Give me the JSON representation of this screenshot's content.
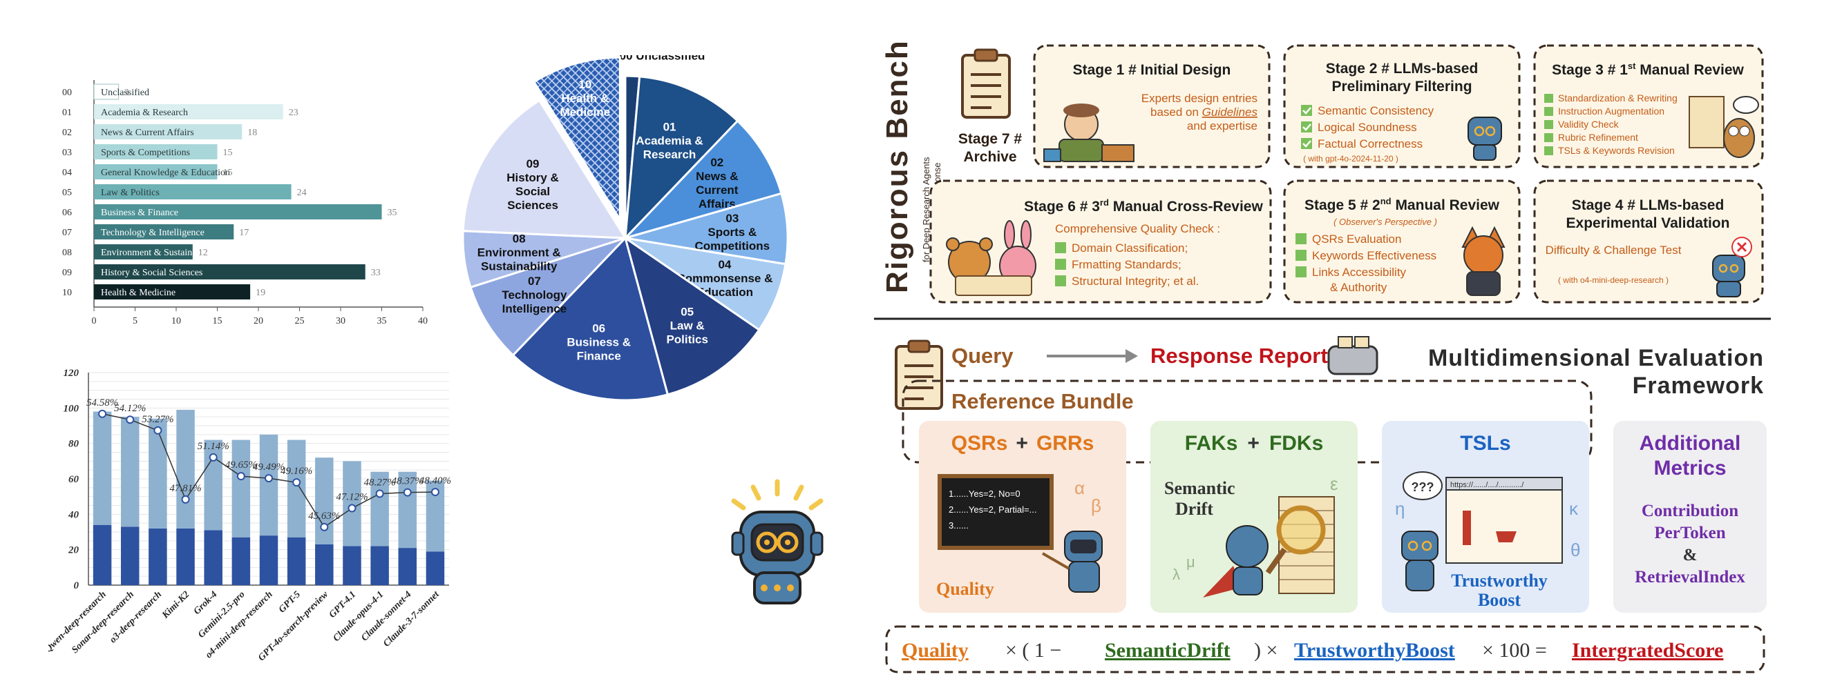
{
  "chart_data": [
    {
      "type": "bar",
      "orientation": "horizontal",
      "codes": [
        "00",
        "01",
        "02",
        "03",
        "04",
        "05",
        "06",
        "07",
        "08",
        "09",
        "10"
      ],
      "categories": [
        "Unclassified",
        "Academia & Research",
        "News & Current Affairs",
        "Sports & Competitions",
        "General Knowledge & Education",
        "Law & Politics",
        "Business & Finance",
        "Technology & Intelligence",
        "Environment & Sustainability",
        "History & Social Sciences",
        "Health & Medicine"
      ],
      "values": [
        3,
        23,
        18,
        15,
        15,
        24,
        35,
        17,
        12,
        33,
        19
      ],
      "xlim": [
        0,
        40
      ],
      "xticks": [
        "0",
        "5",
        "10",
        "15",
        "20",
        "25",
        "30",
        "35",
        "40"
      ],
      "colors": [
        "#ffffff",
        "#dbeef0",
        "#c4e3e6",
        "#a9d6d9",
        "#8cc6ca",
        "#6db1b5",
        "#4f9497",
        "#3d7c80",
        "#2d6265",
        "#1f474a",
        "#0e2226"
      ]
    },
    {
      "type": "bar",
      "stacked": true,
      "categories": [
        "Qwen-deep-research",
        "Sonar-deep-research",
        "o3-deep-research",
        "Kimi-K2",
        "Grok-4",
        "Gemini-2.5-pro",
        "o4-mini-deep-research",
        "GPT-5",
        "GPT-4o-search-preview",
        "GPT-4.1",
        "Claude-opus-4-1",
        "Claude-sonnet-4",
        "Claude-3-7-sonnet"
      ],
      "series": [
        {
          "values": [
            34,
            33,
            32,
            32,
            31,
            27,
            28,
            27,
            23,
            22,
            22,
            21,
            19
          ],
          "color": "#2d52a0"
        },
        {
          "values": [
            64,
            62,
            62,
            67,
            51,
            55,
            57,
            55,
            49,
            48,
            42,
            43,
            40
          ],
          "color": "#8eb1d0"
        }
      ],
      "line": {
        "values": [
          54.58,
          54.12,
          53.27,
          47.81,
          51.14,
          49.65,
          49.49,
          49.16,
          45.63,
          47.12,
          48.27,
          48.37,
          48.4
        ],
        "labels": [
          "54.58%",
          "54.12%",
          "53.27%",
          "47.81%",
          "51.14%",
          "49.65%",
          "49.49%",
          "49.16%",
          "45.63%",
          "47.12%",
          "48.27%",
          "48.37%",
          "48.40%"
        ],
        "range": [
          43,
          57
        ]
      },
      "ylim": [
        0,
        120
      ],
      "yticks": [
        "0",
        "20",
        "40",
        "60",
        "80",
        "100",
        "120"
      ]
    },
    {
      "type": "pie",
      "labels": [
        {
          "code": "00",
          "text": "Unclassified"
        },
        {
          "code": "01",
          "text": "Academia & Research"
        },
        {
          "code": "02",
          "text": "News & Current Affairs"
        },
        {
          "code": "03",
          "text": "Sports & Competitions"
        },
        {
          "code": "04",
          "text": "Commonsense & Education"
        },
        {
          "code": "05",
          "text": "Law & Politics"
        },
        {
          "code": "06",
          "text": "Business & Finance"
        },
        {
          "code": "07",
          "text": "Technology Intelligence"
        },
        {
          "code": "08",
          "text": "Environment & Sustainability"
        },
        {
          "code": "09",
          "text": "History & Social Sciences"
        },
        {
          "code": "10",
          "text": "Health & Medicine"
        }
      ],
      "values": [
        3,
        23,
        18,
        15,
        15,
        24,
        35,
        17,
        12,
        33,
        19
      ],
      "colors": [
        "#1a3f73",
        "#1d4f88",
        "#4b8fdb",
        "#7fb2ea",
        "#a8cbf1",
        "#243f82",
        "#2d4f9e",
        "#8ea6e0",
        "#a9bcea",
        "#d7ddf4",
        "#2a5db0"
      ],
      "exploded": "10"
    }
  ],
  "pipeline": {
    "title": "Rigorous Bench",
    "subtitle": [
      "for Deep Research Agents",
      "& Report-style Response"
    ],
    "stage7": "Stage 7 # Archive",
    "stage1": {
      "title": "Stage 1 # Initial Design",
      "text_1": "Experts design entries",
      "text_2": "based on",
      "text_3": "Guidelines",
      "text_4": "and expertise"
    },
    "stage2": {
      "title_1": "Stage 2 # LLMs-based",
      "title_2": "Preliminary Filtering",
      "items": [
        "Semantic Consistency",
        "Logical Soundness",
        "Factual Correctness"
      ],
      "note": "( with gpt-4o-2024-11-20 )"
    },
    "stage3": {
      "title_a": "Stage 3 # 1",
      "title_sup": "st",
      "title_b": " Manual Review",
      "items": [
        "Standardization & Rewriting",
        "Instruction Augmentation",
        "Validity Check",
        "Rubric Refinement",
        "TSLs & Keywords Revision"
      ]
    },
    "stage6": {
      "title_a": "Stage 6 # 3",
      "title_sup": "rd",
      "title_b": " Manual Cross-Review",
      "subtitle": "Comprehensive Quality Check :",
      "items": [
        "Domain Classification;",
        "Frmatting Standards;",
        "Structural Integrity; et al."
      ]
    },
    "stage5": {
      "title_a": "Stage 5 # 2",
      "title_sup": "nd",
      "title_b": " Manual Review",
      "subtitle": "( Observer's Perspective )",
      "items": [
        "QSRs Evaluation",
        "Keywords Effectiveness",
        "Links Accessibility",
        "& Authority"
      ]
    },
    "stage4": {
      "title_1": "Stage 4 # LLMs-based",
      "title_2": "Experimental Validation",
      "text": "Difficulty & Challenge Test",
      "note": "( with o4-mini-deep-research )"
    }
  },
  "framework": {
    "query": "Query",
    "response": "Response Report",
    "title_1": "Multidimensional Evaluation",
    "title_2": "Framework",
    "bundle": "Reference Bundle",
    "qsr_a": "QSRs",
    "plus": "+",
    "qsr_b": "GRRs",
    "quality": "Quality",
    "board_1": "1......Yes=2, No=0",
    "board_2": "2......Yes=2, Partial=...",
    "board_3": "3......",
    "greek_alpha": "α",
    "greek_beta": "β",
    "fak_a": "FAKs",
    "fak_b": "FDKs",
    "drift_1": "Semantic",
    "drift_2": "Drift",
    "greek_eps": "ε",
    "greek_lambda": "λ",
    "greek_mu": "μ",
    "tsl": "TSLs",
    "url": "https://....../..../.........../",
    "trust_1": "Trustworthy",
    "trust_2": "Boost",
    "greek_eta": "η",
    "greek_kappa": "κ",
    "greek_theta": "θ",
    "qmarks": "???",
    "add_1": "Additional",
    "add_2": "Metrics",
    "metric_1": "Contribution",
    "metric_2": "PerToken",
    "metric_amp": "&",
    "metric_3": "RetrievalIndex",
    "formula": {
      "quality": "Quality",
      "times1": "× ( 1 −",
      "drift": "SemanticDrift",
      "times2": ") ×",
      "boost": "TrustworthyBoost",
      "times3": "× 100 =",
      "score": "IntergratedScore"
    }
  }
}
